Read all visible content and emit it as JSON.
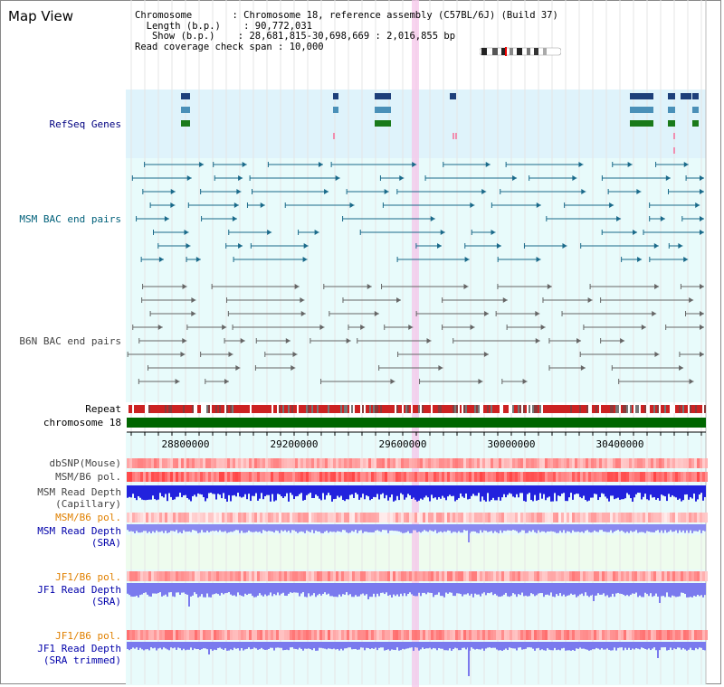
{
  "view_title": "Map View",
  "info": {
    "chromosome_label": "Chromosome",
    "chromosome_value": "Chromosome 18, reference assembly (C57BL/6J) (Build 37)",
    "length_label": "Length (b.p.)",
    "length_value": "90,772,031",
    "show_label": "Show (b.p.)",
    "show_value": "28,681,815-30,698,669 : 2,016,855 bp",
    "coverage_label": "Read coverage check span",
    "coverage_value": "10,000"
  },
  "tracks": {
    "refseq": "RefSeq Genes",
    "msm_bac": "MSM BAC end pairs",
    "b6n_bac": "B6N BAC end pairs",
    "repeat": "Repeat",
    "chromosome": "chromosome 18",
    "dbsnp": "dbSNP(Mouse)",
    "msm_pol1": "MSM/B6 pol.",
    "msm_depth_cap_1": "MSM Read Depth",
    "msm_depth_cap_2": "(Capillary)",
    "msm_pol2": "MSM/B6 pol.",
    "msm_depth_sra_1": "MSM Read Depth",
    "msm_depth_sra_2": "(SRA)",
    "jf1_pol1": "JF1/B6 pol.",
    "jf1_depth_sra_1": "JF1 Read Depth",
    "jf1_depth_sra_2": "(SRA)",
    "jf1_pol2": "JF1/B6 pol.",
    "jf1_depth_trim_1": "JF1 Read Depth",
    "jf1_depth_trim_2": "(SRA trimmed)"
  },
  "axis_ticks": [
    "28800000",
    "29200000",
    "29600000",
    "30000000",
    "30400000"
  ],
  "colors": {
    "refseq_bg": "#dff3fb",
    "track_bg": "#e8fbfb",
    "chromosome": "#006600",
    "repeat": "#cc2222",
    "highlight": "#f5c6ea",
    "depth_blue": "#2020ee",
    "depth_light": "#8a8af0"
  }
}
